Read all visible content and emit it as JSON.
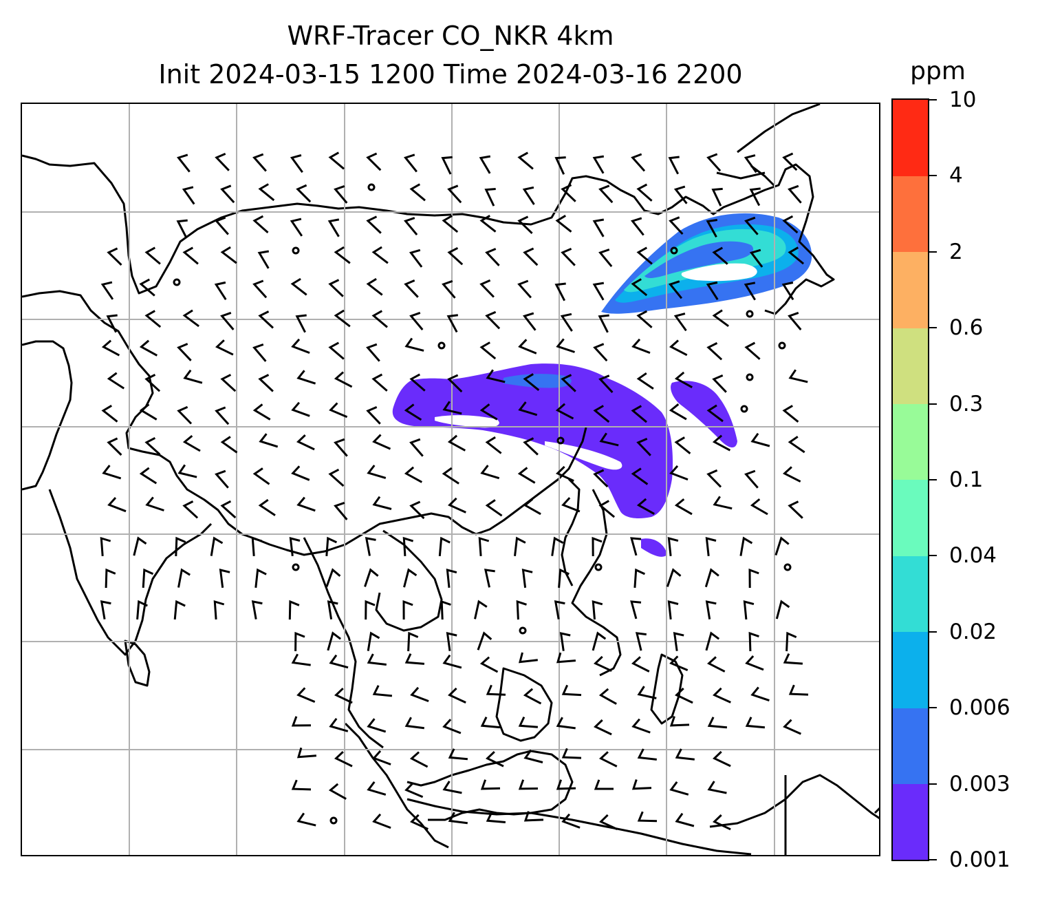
{
  "title": {
    "line1": "WRF-Tracer CO_NKR 4km",
    "line2": "Init 2024-03-15 1200 Time 2024-03-16 2200"
  },
  "colorbar": {
    "unit": "ppm",
    "tick_labels": [
      "0.001",
      "0.003",
      "0.006",
      "0.02",
      "0.04",
      "0.1",
      "0.3",
      "0.6",
      "2",
      "4",
      "10"
    ],
    "colors": [
      "#6a2cfb",
      "#3673f2",
      "#0cb0ec",
      "#33ddd5",
      "#6afbbd",
      "#98fb98",
      "#cfe07f",
      "#fdb062",
      "#fe703c",
      "#ff2a14"
    ]
  },
  "map": {
    "graticule": "on",
    "coastlines": "on",
    "wind_barbs": "on",
    "tracer_field": "CO_NKR"
  }
}
